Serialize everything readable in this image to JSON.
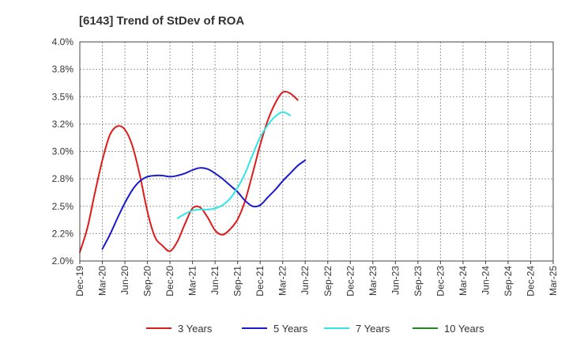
{
  "chart_data": {
    "type": "line",
    "title": "[6143]  Trend of StDev of ROA",
    "xlabel": "",
    "ylabel": "",
    "ylim": [
      2.0,
      4.0
    ],
    "grid": true,
    "legend_position": "bottom",
    "x_ticks": [
      "Dec-19",
      "Mar-20",
      "Jun-20",
      "Sep-20",
      "Dec-20",
      "Mar-21",
      "Jun-21",
      "Sep-21",
      "Dec-21",
      "Mar-22",
      "Jun-22",
      "Sep-22",
      "Dec-22",
      "Mar-23",
      "Jun-23",
      "Sep-23",
      "Dec-23",
      "Mar-24",
      "Jun-24",
      "Sep-24",
      "Dec-24",
      "Mar-25"
    ],
    "y_ticks": [
      {
        "value": 2.0,
        "label": "2.0%"
      },
      {
        "value": 2.25,
        "label": "2.2%"
      },
      {
        "value": 2.5,
        "label": "2.5%"
      },
      {
        "value": 2.75,
        "label": "2.8%"
      },
      {
        "value": 3.0,
        "label": "3.0%"
      },
      {
        "value": 3.25,
        "label": "3.2%"
      },
      {
        "value": 3.5,
        "label": "3.5%"
      },
      {
        "value": 3.75,
        "label": "3.8%"
      },
      {
        "value": 4.0,
        "label": "4.0%"
      }
    ],
    "series": [
      {
        "name": "3 Years",
        "color": "#dd1c1c",
        "points": [
          [
            0,
            2.08
          ],
          [
            1,
            2.3
          ],
          [
            2,
            2.62
          ],
          [
            3,
            2.92
          ],
          [
            4,
            3.15
          ],
          [
            5,
            3.23
          ],
          [
            6,
            3.2
          ],
          [
            7,
            3.05
          ],
          [
            8,
            2.78
          ],
          [
            9,
            2.45
          ],
          [
            10,
            2.22
          ],
          [
            11,
            2.14
          ],
          [
            12,
            2.09
          ],
          [
            13,
            2.18
          ],
          [
            14,
            2.34
          ],
          [
            15,
            2.48
          ],
          [
            16,
            2.49
          ],
          [
            17,
            2.4
          ],
          [
            18,
            2.28
          ],
          [
            19,
            2.24
          ],
          [
            20,
            2.29
          ],
          [
            21,
            2.38
          ],
          [
            22,
            2.55
          ],
          [
            23,
            2.8
          ],
          [
            24,
            3.06
          ],
          [
            25,
            3.28
          ],
          [
            26,
            3.44
          ],
          [
            27,
            3.54
          ],
          [
            28,
            3.53
          ],
          [
            29,
            3.47
          ]
        ]
      },
      {
        "name": "5 Years",
        "color": "#1a1acc",
        "points": [
          [
            3,
            2.11
          ],
          [
            4,
            2.24
          ],
          [
            5,
            2.39
          ],
          [
            6,
            2.53
          ],
          [
            7,
            2.65
          ],
          [
            8,
            2.73
          ],
          [
            9,
            2.77
          ],
          [
            10,
            2.78
          ],
          [
            11,
            2.78
          ],
          [
            12,
            2.77
          ],
          [
            13,
            2.78
          ],
          [
            14,
            2.8
          ],
          [
            15,
            2.83
          ],
          [
            16,
            2.85
          ],
          [
            17,
            2.84
          ],
          [
            18,
            2.8
          ],
          [
            19,
            2.75
          ],
          [
            20,
            2.69
          ],
          [
            21,
            2.63
          ],
          [
            22,
            2.55
          ],
          [
            23,
            2.5
          ],
          [
            24,
            2.51
          ],
          [
            25,
            2.58
          ],
          [
            26,
            2.65
          ],
          [
            27,
            2.73
          ],
          [
            28,
            2.8
          ],
          [
            29,
            2.87
          ],
          [
            30,
            2.92
          ]
        ]
      },
      {
        "name": "7 Years",
        "color": "#33e6e6",
        "points": [
          [
            13,
            2.39
          ],
          [
            14,
            2.43
          ],
          [
            15,
            2.46
          ],
          [
            16,
            2.47
          ],
          [
            17,
            2.47
          ],
          [
            18,
            2.48
          ],
          [
            19,
            2.51
          ],
          [
            20,
            2.57
          ],
          [
            21,
            2.67
          ],
          [
            22,
            2.8
          ],
          [
            23,
            2.97
          ],
          [
            24,
            3.13
          ],
          [
            25,
            3.24
          ],
          [
            26,
            3.32
          ],
          [
            27,
            3.36
          ],
          [
            28,
            3.33
          ]
        ]
      },
      {
        "name": "10 Years",
        "color": "#228822",
        "points": []
      }
    ]
  }
}
